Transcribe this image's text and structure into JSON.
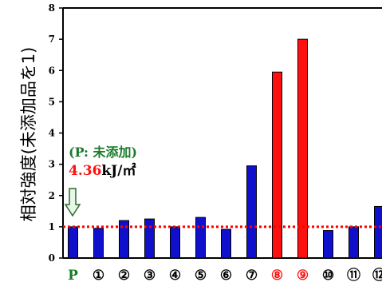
{
  "colors": {
    "blue_bar": "#1010cc",
    "red_bar": "#ff1010",
    "green_text": "#1a7a2a",
    "red_text": "#ff1010",
    "reference_line": "#ff0000",
    "arrow_fill": "#e8f7e8",
    "arrow_stroke": "#2a6a2a"
  },
  "chart_data": {
    "type": "bar",
    "ylabel": "相対強度(未添加品を1)",
    "ylim": [
      0,
      8
    ],
    "yticks": [
      0,
      1,
      2,
      3,
      4,
      5,
      6,
      7,
      8
    ],
    "grid": false,
    "reference_line": {
      "y": 1,
      "style": "dotted",
      "color": "#ff0000"
    },
    "categories": [
      "P",
      "①",
      "②",
      "③",
      "④",
      "⑤",
      "⑥",
      "⑦",
      "⑧",
      "⑨",
      "⑩",
      "⑪",
      "⑫"
    ],
    "values": [
      1.0,
      0.95,
      1.2,
      1.25,
      1.0,
      1.3,
      0.92,
      2.95,
      5.95,
      7.0,
      0.88,
      1.0,
      1.65
    ],
    "bar_colors": [
      "blue",
      "blue",
      "blue",
      "blue",
      "blue",
      "blue",
      "blue",
      "blue",
      "red",
      "red",
      "blue",
      "blue",
      "blue"
    ],
    "label_colors": [
      "green",
      "black",
      "black",
      "black",
      "black",
      "black",
      "black",
      "black",
      "red",
      "red",
      "black",
      "black",
      "black"
    ],
    "annotation": {
      "line1": "(P: 未添加)",
      "value": "4.36",
      "unit": "kJ/㎡"
    }
  }
}
